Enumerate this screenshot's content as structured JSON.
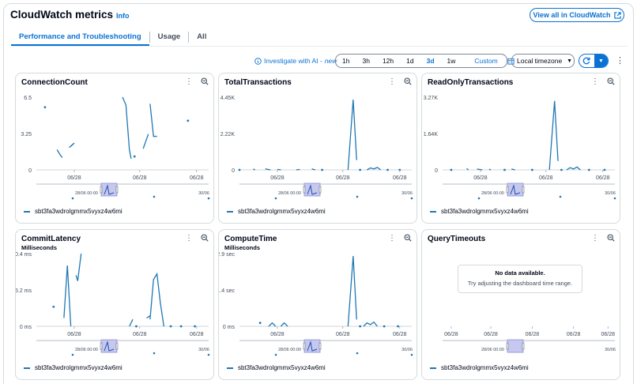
{
  "header": {
    "title": "CloudWatch metrics",
    "info": "Info",
    "view_all": "View all in CloudWatch"
  },
  "tabs": [
    {
      "label": "Performance and Troubleshooting",
      "active": true
    },
    {
      "label": "Usage",
      "active": false
    },
    {
      "label": "All",
      "active": false
    }
  ],
  "toolbar": {
    "investigate_prefix": "Investigate with AI - ",
    "investigate_new": "new",
    "ranges": [
      "1h",
      "3h",
      "12h",
      "1d",
      "3d",
      "1w"
    ],
    "selected_range": "3d",
    "custom": "Custom",
    "timezone": "Local timezone"
  },
  "panels": [
    {
      "title": "ConnectionCount",
      "unit": "",
      "y_ticks": [
        "6.5",
        "3.25",
        "0"
      ],
      "x_ticks": [
        "06/28",
        "06/28",
        "06/28"
      ],
      "mini_labels": [
        "28/06 00:00",
        "30/06"
      ],
      "legend": "sbt3fa3wdrolgmmx5vyxz4w6mi",
      "ymax": 6.5,
      "segments": [
        [
          [
            0.05,
            5.6
          ]
        ],
        [
          [
            0.12,
            1.8
          ],
          [
            0.14,
            1.3
          ],
          [
            0.15,
            1.1
          ]
        ],
        [
          [
            0.19,
            2.0
          ],
          [
            0.22,
            2.4
          ],
          [
            0.2,
            2.1
          ]
        ],
        [
          [
            0.5,
            6.5
          ],
          [
            0.52,
            5.8
          ],
          [
            0.54,
            1.8
          ],
          [
            0.55,
            1.0
          ]
        ],
        [
          [
            0.57,
            1.2
          ]
        ],
        [
          [
            0.62,
            1.9
          ],
          [
            0.65,
            3.2
          ]
        ],
        [
          [
            0.66,
            5.9
          ],
          [
            0.68,
            3.0
          ],
          [
            0.7,
            3.0
          ]
        ],
        [
          [
            0.88,
            4.4
          ]
        ]
      ],
      "no_data": false
    },
    {
      "title": "TotalTransactions",
      "unit": "",
      "y_ticks": [
        "4.45K",
        "2.22K",
        "0"
      ],
      "x_ticks": [
        "06/28",
        "06/28",
        "06/28"
      ],
      "mini_labels": [
        "28/06 00:00",
        "30/06"
      ],
      "legend": "sbt3fa3wdrolgmmx5vyxz4w6mi",
      "ymax": 4450,
      "segments": [
        [
          [
            0.0,
            0
          ]
        ],
        [
          [
            0.08,
            60
          ],
          [
            0.09,
            0
          ]
        ],
        [
          [
            0.15,
            60
          ],
          [
            0.18,
            0
          ]
        ],
        [
          [
            0.22,
            30
          ],
          [
            0.24,
            0
          ]
        ],
        [
          [
            0.33,
            0
          ],
          [
            0.35,
            30
          ]
        ],
        [
          [
            0.42,
            60
          ],
          [
            0.44,
            0
          ]
        ],
        [
          [
            0.48,
            0
          ]
        ],
        [
          [
            0.63,
            0
          ],
          [
            0.66,
            4300
          ],
          [
            0.68,
            600
          ]
        ],
        [
          [
            0.7,
            0
          ]
        ],
        [
          [
            0.74,
            0
          ],
          [
            0.76,
            120
          ],
          [
            0.78,
            60
          ],
          [
            0.8,
            150
          ],
          [
            0.82,
            0
          ]
        ],
        [
          [
            0.86,
            0
          ]
        ],
        [
          [
            0.93,
            0
          ]
        ]
      ],
      "no_data": false
    },
    {
      "title": "ReadOnlyTransactions",
      "unit": "",
      "y_ticks": [
        "3.27K",
        "1.64K",
        "0"
      ],
      "x_ticks": [
        "06/28",
        "06/28",
        "06/28"
      ],
      "mini_labels": [
        "28/06 00:00",
        "30/06"
      ],
      "legend": "sbt3fa3wdrolgmmx5vyxz4w6mi",
      "ymax": 3270,
      "segments": [
        [
          [
            0.05,
            0
          ]
        ],
        [
          [
            0.14,
            60
          ],
          [
            0.15,
            0
          ]
        ],
        [
          [
            0.2,
            40
          ],
          [
            0.23,
            0
          ]
        ],
        [
          [
            0.27,
            30
          ],
          [
            0.28,
            0
          ]
        ],
        [
          [
            0.36,
            0
          ]
        ],
        [
          [
            0.4,
            40
          ],
          [
            0.42,
            0
          ]
        ],
        [
          [
            0.52,
            0
          ]
        ],
        [
          [
            0.62,
            0
          ],
          [
            0.65,
            3100
          ],
          [
            0.67,
            400
          ]
        ],
        [
          [
            0.69,
            0
          ]
        ],
        [
          [
            0.72,
            0
          ],
          [
            0.74,
            100
          ],
          [
            0.76,
            40
          ],
          [
            0.78,
            130
          ],
          [
            0.8,
            0
          ]
        ],
        [
          [
            0.85,
            0
          ]
        ],
        [
          [
            0.94,
            0
          ]
        ]
      ],
      "no_data": false
    },
    {
      "title": "CommitLatency",
      "unit": "Milliseconds",
      "y_ticks": [
        "10.4 ms",
        "5.2 ms",
        "0 ms"
      ],
      "x_ticks": [
        "06/28",
        "06/28",
        "06/28"
      ],
      "mini_labels": [
        "28/06 00:00",
        "30/06"
      ],
      "legend": "sbt3fa3wdrolgmmx5vyxz4w6mi",
      "ymax": 10.4,
      "segments": [
        [
          [
            0.1,
            2.8
          ]
        ],
        [
          [
            0.16,
            1.2
          ],
          [
            0.18,
            8.7
          ],
          [
            0.2,
            0
          ]
        ],
        [
          [
            0.23,
            7.3
          ],
          [
            0.24,
            6.5
          ],
          [
            0.26,
            10.4
          ]
        ],
        [
          [
            0.54,
            0
          ],
          [
            0.56,
            1.0
          ]
        ],
        [
          [
            0.58,
            0
          ]
        ],
        [
          [
            0.64,
            1.2
          ],
          [
            0.66,
            1.5
          ]
        ],
        [
          [
            0.66,
            1.0
          ],
          [
            0.68,
            6.7
          ],
          [
            0.7,
            7.5
          ],
          [
            0.72,
            3.3
          ],
          [
            0.74,
            0
          ]
        ],
        [
          [
            0.78,
            0
          ]
        ],
        [
          [
            0.84,
            0
          ]
        ],
        [
          [
            0.92,
            0
          ]
        ]
      ],
      "no_data": false
    },
    {
      "title": "ComputeTime",
      "unit": "Milliseconds",
      "y_ticks": [
        "42.9 sec",
        "21.4 sec",
        "0 ms"
      ],
      "x_ticks": [
        "06/28",
        "06/28",
        "06/28"
      ],
      "mini_labels": [
        "28/06 00:00",
        "30/06"
      ],
      "legend": "sbt3fa3wdrolgmmx5vyxz4w6mi",
      "ymax": 42.9,
      "segments": [
        [
          [
            0.12,
            2.0
          ]
        ],
        [
          [
            0.17,
            0
          ],
          [
            0.19,
            2.0
          ],
          [
            0.21,
            0
          ]
        ],
        [
          [
            0.24,
            0
          ],
          [
            0.26,
            2.0
          ],
          [
            0.28,
            0
          ]
        ],
        [
          [
            0.63,
            0
          ],
          [
            0.66,
            41.5
          ],
          [
            0.68,
            4.0
          ]
        ],
        [
          [
            0.7,
            0
          ]
        ],
        [
          [
            0.72,
            0
          ],
          [
            0.74,
            2.0
          ],
          [
            0.76,
            1.0
          ],
          [
            0.78,
            2.5
          ],
          [
            0.8,
            0
          ]
        ],
        [
          [
            0.84,
            0
          ]
        ],
        [
          [
            0.92,
            0
          ]
        ]
      ],
      "no_data": false
    },
    {
      "title": "QueryTimeouts",
      "unit": "",
      "y_ticks": [],
      "x_ticks": [
        "06/28",
        "06/28",
        "06/28",
        "06/28",
        "06/28"
      ],
      "mini_labels": [
        "28/06 00:00",
        "30/06"
      ],
      "legend": "sbt3fa3wdrolgmmx5vyxz4w6mi",
      "ymax": 1,
      "segments": [],
      "no_data": true,
      "no_data_title": "No data available.",
      "no_data_text": "Try adjusting the dashboard time range."
    }
  ]
}
